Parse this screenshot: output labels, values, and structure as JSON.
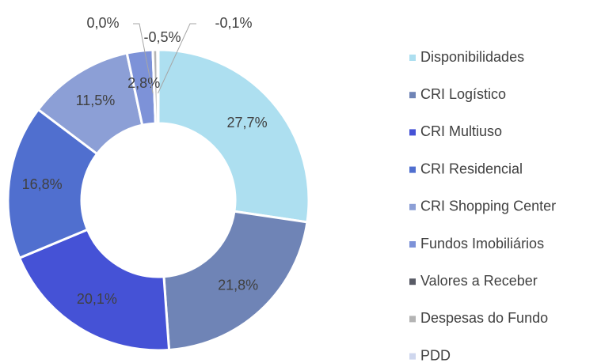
{
  "chart_data": {
    "type": "donut",
    "categories": [
      "Disponibilidades",
      "CRI Logístico",
      "CRI Multiuso",
      "CRI Residencial",
      "CRI Shopping Center",
      "Fundos Imobiliários",
      "Valores a Receber",
      "Despesas do Fundo",
      "PDD"
    ],
    "values": [
      27.7,
      21.8,
      20.1,
      16.8,
      11.5,
      2.8,
      0.0,
      -0.5,
      -0.1
    ],
    "value_labels": [
      "27,7%",
      "21,8%",
      "20,1%",
      "16,8%",
      "11,5%",
      "2,8%",
      "0,0%",
      "-0,5%",
      "-0,1%"
    ],
    "colors": [
      "#addff0",
      "#6f84b6",
      "#4552d6",
      "#506fcf",
      "#8c9fd6",
      "#7d92d8",
      "#595b66",
      "#b4b4b4",
      "#cfd7ee"
    ],
    "legend": "right"
  }
}
